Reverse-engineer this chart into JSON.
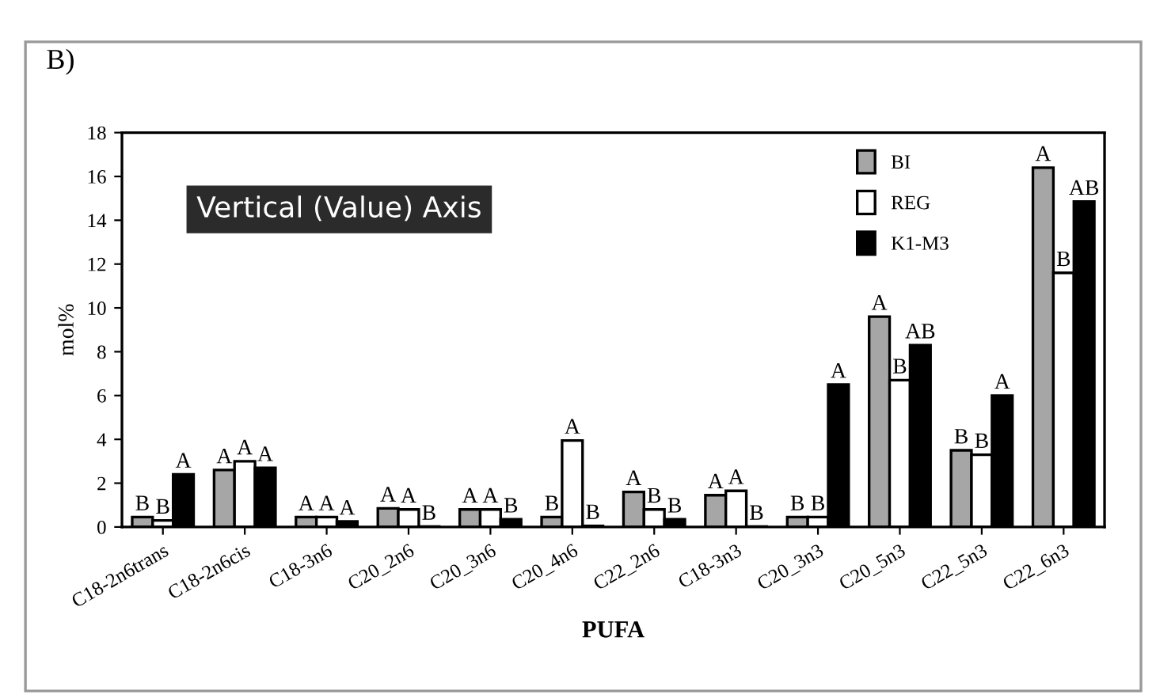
{
  "chart_data": {
    "type": "bar",
    "title": "B)",
    "xlabel": "PUFA",
    "ylabel": "mol%",
    "categories": [
      "C18-2n6trans",
      "C18-2n6cis",
      "C18-3n6",
      "C20_2n6",
      "C20_3n6",
      "C20_4n6",
      "C22_2n6",
      "C18-3n3",
      "C20_3n3",
      "C20_5n3",
      "C22_5n3",
      "C22_6n3"
    ],
    "series": [
      {
        "name": "BI",
        "color": "#a6a6a6",
        "values": [
          0.45,
          2.6,
          0.45,
          0.85,
          0.8,
          0.45,
          1.6,
          1.45,
          0.45,
          9.6,
          3.5,
          16.4
        ],
        "value_labels": [
          "B",
          "A",
          "A",
          "A",
          "A",
          "B",
          "A",
          "A",
          "B",
          "A",
          "B",
          "A"
        ]
      },
      {
        "name": "REG",
        "color": "#ffffff",
        "values": [
          0.3,
          3.0,
          0.45,
          0.8,
          0.8,
          3.95,
          0.8,
          1.65,
          0.45,
          6.7,
          3.3,
          11.6
        ],
        "value_labels": [
          "B",
          "A",
          "A",
          "A",
          "A",
          "A",
          "B",
          "A",
          "B",
          "B",
          "B",
          "B"
        ]
      },
      {
        "name": "K1-M3",
        "color": "#000000",
        "values": [
          2.4,
          2.7,
          0.25,
          0.02,
          0.35,
          0.05,
          0.35,
          0.02,
          6.5,
          8.3,
          6.0,
          14.85
        ],
        "value_labels": [
          "A",
          "A",
          "A",
          "B",
          "B",
          "B",
          "B",
          "B",
          "A",
          "AB",
          "A",
          "AB"
        ]
      }
    ],
    "ylim": [
      0,
      18
    ],
    "yticks": [
      0,
      2,
      4,
      6,
      8,
      10,
      12,
      14,
      16,
      18
    ],
    "grid": false,
    "legend": "top right",
    "annotations": [
      "Vertical (Value) Axis"
    ]
  }
}
